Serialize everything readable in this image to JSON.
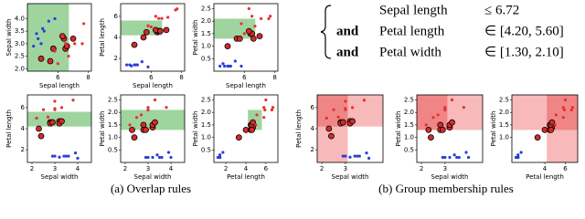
{
  "rule": {
    "lines": [
      {
        "feature": "Sepal length",
        "condition": "≤ 6.72"
      },
      {
        "connector": "and",
        "feature": "Petal length",
        "condition": "∈ [4.20, 5.60]"
      },
      {
        "connector": "and",
        "feature": "Petal width",
        "condition": "∈ [1.30, 2.10]"
      }
    ]
  },
  "captions": [
    "(a) Overlap rules",
    "(b) Group membership rules"
  ],
  "chart_data": [
    {
      "type": "scatter",
      "xlabel": "Sepal length",
      "ylabel": "Sepal width",
      "xlim": [
        4,
        8.2
      ],
      "ylim": [
        1.9,
        4.6
      ],
      "xticks": [
        6,
        8
      ],
      "yticks": [
        {
          "value": 2,
          "label": "2.0"
        },
        {
          "value": 2.5,
          "label": "2.5"
        },
        {
          "value": 3,
          "label": "3.0"
        },
        {
          "value": 3.5,
          "label": "3.5"
        },
        {
          "value": 4,
          "label": "4.0"
        }
      ],
      "regions": [
        {
          "x": [
            4,
            6.72
          ],
          "y": [
            1.9,
            4.6
          ],
          "color": "#9fd49f"
        }
      ],
      "series": [
        {
          "color": "#2a3fd8",
          "x": [
            5.1,
            4.9,
            4.7,
            5.0,
            5.4,
            4.6,
            5.8,
            4.4
          ],
          "values": [
            3.5,
            3.0,
            3.2,
            3.6,
            3.9,
            3.4,
            4.0,
            2.9
          ]
        },
        {
          "color": "#d42a2a",
          "outline": "#000",
          "x": [
            7.0,
            6.4,
            5.5,
            6.5,
            5.7,
            6.3,
            4.9,
            6.6
          ],
          "values": [
            3.2,
            3.2,
            2.3,
            2.8,
            2.8,
            3.3,
            2.4,
            2.9
          ]
        },
        {
          "color": "#e83030",
          "x": [
            6.3,
            5.8,
            7.1,
            6.5,
            7.6,
            7.7,
            6.7,
            6.0
          ],
          "values": [
            3.3,
            2.7,
            3.0,
            3.0,
            3.0,
            3.8,
            2.5,
            2.2
          ]
        }
      ]
    },
    {
      "type": "scatter",
      "xlabel": "Sepal length",
      "ylabel": "Petal length",
      "xlim": [
        4,
        8.2
      ],
      "ylim": [
        0.8,
        7.2
      ],
      "xticks": [
        6,
        8
      ],
      "yticks": [
        2,
        4,
        6
      ],
      "regions": [
        {
          "x": [
            4,
            6.72
          ],
          "y": [
            4.2,
            5.6
          ],
          "color": "#9fd49f"
        }
      ],
      "series": [
        {
          "color": "#2a3fd8",
          "x": [
            5.1,
            4.9,
            4.7,
            5.0,
            5.4,
            4.6,
            5.8,
            4.4
          ],
          "values": [
            1.4,
            1.4,
            1.3,
            1.4,
            1.7,
            1.4,
            1.2,
            1.4
          ]
        },
        {
          "color": "#d42a2a",
          "outline": "#000",
          "x": [
            7.0,
            6.4,
            5.5,
            6.5,
            5.7,
            6.3,
            4.9,
            6.6
          ],
          "values": [
            4.7,
            4.5,
            4.0,
            4.6,
            4.5,
            4.7,
            3.3,
            4.6
          ]
        },
        {
          "color": "#e83030",
          "x": [
            6.3,
            5.8,
            7.1,
            6.5,
            7.6,
            7.7,
            6.7,
            6.0
          ],
          "values": [
            6.0,
            5.1,
            5.9,
            5.8,
            6.6,
            6.7,
            5.8,
            5.0
          ]
        }
      ]
    },
    {
      "type": "scatter",
      "xlabel": "Sepal length",
      "ylabel": "Petal width",
      "xlim": [
        4,
        8.2
      ],
      "ylim": [
        0,
        2.7
      ],
      "xticks": [
        6,
        8
      ],
      "yticks": [
        {
          "value": 0.5,
          "label": "0.5"
        },
        {
          "value": 1,
          "label": "1.0"
        },
        {
          "value": 1.5,
          "label": "1.5"
        },
        {
          "value": 2,
          "label": "2.0"
        },
        {
          "value": 2.5,
          "label": "2.5"
        }
      ],
      "regions": [
        {
          "x": [
            4,
            6.72
          ],
          "y": [
            1.3,
            2.1
          ],
          "color": "#9fd49f"
        }
      ],
      "series": [
        {
          "color": "#2a3fd8",
          "x": [
            5.1,
            4.9,
            4.7,
            5.0,
            5.4,
            4.6,
            5.8,
            4.4
          ],
          "values": [
            0.2,
            0.2,
            0.2,
            0.2,
            0.4,
            0.3,
            0.2,
            0.2
          ]
        },
        {
          "color": "#d42a2a",
          "outline": "#000",
          "x": [
            7.0,
            6.4,
            5.5,
            6.5,
            5.7,
            6.3,
            4.9,
            6.6
          ],
          "values": [
            1.4,
            1.5,
            1.3,
            1.5,
            1.3,
            1.6,
            1.0,
            1.3
          ]
        },
        {
          "color": "#e83030",
          "x": [
            6.3,
            5.8,
            7.1,
            6.5,
            7.6,
            7.7,
            6.7,
            6.0
          ],
          "values": [
            2.5,
            1.9,
            2.1,
            2.2,
            2.1,
            2.2,
            1.8,
            1.5
          ]
        }
      ]
    },
    {
      "type": "scatter",
      "xlabel": "Sepal width",
      "ylabel": "Petal length",
      "xlim": [
        1.8,
        4.6
      ],
      "ylim": [
        0.8,
        7.2
      ],
      "xticks": [
        2,
        3,
        4
      ],
      "yticks": [
        2,
        4,
        6
      ],
      "regions": [
        {
          "x": [
            1.8,
            4.6
          ],
          "y": [
            4.2,
            5.6
          ],
          "color": "#9fd49f"
        }
      ],
      "series": [
        {
          "color": "#2a3fd8",
          "x": [
            3.5,
            3.0,
            3.2,
            3.6,
            3.9,
            3.4,
            4.0,
            2.9
          ],
          "values": [
            1.4,
            1.4,
            1.3,
            1.4,
            1.7,
            1.4,
            1.2,
            1.4
          ]
        },
        {
          "color": "#d42a2a",
          "outline": "#000",
          "x": [
            3.2,
            3.2,
            2.3,
            2.8,
            2.8,
            3.3,
            2.4,
            2.9
          ],
          "values": [
            4.7,
            4.5,
            4.0,
            4.6,
            4.5,
            4.7,
            3.3,
            4.6
          ]
        },
        {
          "color": "#e83030",
          "x": [
            3.3,
            2.7,
            3.0,
            3.0,
            3.0,
            3.8,
            2.5,
            2.2
          ],
          "values": [
            6.0,
            5.1,
            5.9,
            5.8,
            6.6,
            6.7,
            5.8,
            5.0
          ]
        }
      ]
    },
    {
      "type": "scatter",
      "xlabel": "Sepal width",
      "ylabel": "Petal width",
      "xlim": [
        1.8,
        4.6
      ],
      "ylim": [
        0,
        2.7
      ],
      "xticks": [
        2,
        3,
        4
      ],
      "yticks": [
        {
          "value": 0.5,
          "label": "0.5"
        },
        {
          "value": 1,
          "label": "1.0"
        },
        {
          "value": 1.5,
          "label": "1.5"
        },
        {
          "value": 2,
          "label": "2.0"
        },
        {
          "value": 2.5,
          "label": "2.5"
        }
      ],
      "regions": [
        {
          "x": [
            1.8,
            4.6
          ],
          "y": [
            1.3,
            2.1
          ],
          "color": "#9fd49f"
        }
      ],
      "series": [
        {
          "color": "#2a3fd8",
          "x": [
            3.5,
            3.0,
            3.2,
            3.6,
            3.9,
            3.4,
            4.0,
            2.9
          ],
          "values": [
            0.2,
            0.2,
            0.2,
            0.2,
            0.4,
            0.3,
            0.2,
            0.2
          ]
        },
        {
          "color": "#d42a2a",
          "outline": "#000",
          "x": [
            3.2,
            3.2,
            2.3,
            2.8,
            2.8,
            3.3,
            2.4,
            2.9
          ],
          "values": [
            1.4,
            1.5,
            1.3,
            1.5,
            1.3,
            1.6,
            1.0,
            1.3
          ]
        },
        {
          "color": "#e83030",
          "x": [
            3.3,
            2.7,
            3.0,
            3.0,
            3.0,
            3.8,
            2.5,
            2.2
          ],
          "values": [
            2.5,
            1.9,
            2.1,
            2.2,
            2.1,
            2.2,
            1.8,
            1.5
          ]
        }
      ]
    },
    {
      "type": "scatter",
      "xlabel": "Petal length",
      "ylabel": "Petal width",
      "xlim": [
        0.8,
        7.2
      ],
      "ylim": [
        0,
        2.7
      ],
      "xticks": [
        2,
        4,
        6
      ],
      "yticks": [
        {
          "value": 0.5,
          "label": "0.5"
        },
        {
          "value": 1,
          "label": "1.0"
        },
        {
          "value": 1.5,
          "label": "1.5"
        },
        {
          "value": 2,
          "label": "2.0"
        },
        {
          "value": 2.5,
          "label": "2.5"
        }
      ],
      "regions": [
        {
          "x": [
            4.2,
            5.6
          ],
          "y": [
            1.3,
            2.1
          ],
          "color": "#9fd49f"
        }
      ],
      "series": [
        {
          "color": "#2a3fd8",
          "x": [
            1.4,
            1.4,
            1.3,
            1.4,
            1.7,
            1.4,
            1.2,
            1.4
          ],
          "values": [
            0.2,
            0.2,
            0.2,
            0.2,
            0.4,
            0.3,
            0.2,
            0.2
          ]
        },
        {
          "color": "#d42a2a",
          "outline": "#000",
          "x": [
            4.7,
            4.5,
            4.0,
            4.6,
            4.5,
            4.7,
            3.3,
            4.6
          ],
          "values": [
            1.4,
            1.5,
            1.3,
            1.5,
            1.3,
            1.6,
            1.0,
            1.3
          ]
        },
        {
          "color": "#e83030",
          "x": [
            6.0,
            5.1,
            5.9,
            5.8,
            6.6,
            6.7,
            5.8,
            5.0
          ],
          "values": [
            2.5,
            1.9,
            2.1,
            2.2,
            2.1,
            2.2,
            1.8,
            1.5
          ]
        }
      ]
    },
    {
      "type": "scatter",
      "xlabel": "Sepal width",
      "ylabel": "Petal length",
      "xlim": [
        1.8,
        4.6
      ],
      "ylim": [
        0.8,
        7.2
      ],
      "xticks": [
        2,
        3
      ],
      "yticks": [
        2,
        4,
        6
      ],
      "regions": [
        {
          "x": [
            1.8,
            4.6
          ],
          "y": [
            4.2,
            7.2
          ],
          "color": "#f7b9b9"
        },
        {
          "x": [
            1.8,
            3.1
          ],
          "y": [
            0.8,
            7.2
          ],
          "color": "#f7b9b9"
        },
        {
          "x": [
            1.8,
            3.1
          ],
          "y": [
            4.2,
            7.2
          ],
          "color": "#f08585"
        }
      ],
      "series": [
        {
          "color": "#2a3fd8",
          "x": [
            3.5,
            3.0,
            3.2,
            3.6,
            3.9,
            3.4,
            4.0,
            2.9
          ],
          "values": [
            1.4,
            1.4,
            1.3,
            1.4,
            1.7,
            1.4,
            1.2,
            1.4
          ]
        },
        {
          "color": "#d42a2a",
          "outline": "#000",
          "x": [
            3.2,
            3.2,
            2.3,
            2.8,
            2.8,
            3.3,
            2.4,
            2.9
          ],
          "values": [
            4.7,
            4.5,
            4.0,
            4.6,
            4.5,
            4.7,
            3.3,
            4.6
          ]
        },
        {
          "color": "#e83030",
          "x": [
            3.3,
            2.7,
            3.0,
            3.0,
            3.0,
            3.8,
            2.5,
            2.2
          ],
          "values": [
            6.0,
            5.1,
            5.9,
            5.8,
            6.6,
            6.7,
            5.8,
            5.0
          ]
        }
      ]
    },
    {
      "type": "scatter",
      "xlabel": "Sepal width",
      "ylabel": "Petal width",
      "xlim": [
        1.8,
        4.6
      ],
      "ylim": [
        0,
        2.7
      ],
      "xticks": [
        2,
        3
      ],
      "yticks": [
        {
          "value": 0.5,
          "label": "0.5"
        },
        {
          "value": 1,
          "label": "1.0"
        },
        {
          "value": 1.5,
          "label": "1.5"
        },
        {
          "value": 2,
          "label": "2.0"
        },
        {
          "value": 2.5,
          "label": "2.5"
        }
      ],
      "regions": [
        {
          "x": [
            1.8,
            4.6
          ],
          "y": [
            1.3,
            2.7
          ],
          "color": "#f7b9b9"
        },
        {
          "x": [
            1.8,
            3.1
          ],
          "y": [
            1.3,
            2.7
          ],
          "color": "#f08585"
        }
      ],
      "series": [
        {
          "color": "#2a3fd8",
          "x": [
            3.5,
            3.0,
            3.2,
            3.6,
            3.9,
            3.4,
            4.0,
            2.9
          ],
          "values": [
            0.2,
            0.2,
            0.2,
            0.2,
            0.4,
            0.3,
            0.2,
            0.2
          ]
        },
        {
          "color": "#d42a2a",
          "outline": "#000",
          "x": [
            3.2,
            3.2,
            2.3,
            2.8,
            2.8,
            3.3,
            2.4,
            2.9
          ],
          "values": [
            1.4,
            1.5,
            1.3,
            1.5,
            1.3,
            1.6,
            1.0,
            1.3
          ]
        },
        {
          "color": "#e83030",
          "x": [
            3.3,
            2.7,
            3.0,
            3.0,
            3.0,
            3.8,
            2.5,
            2.2
          ],
          "values": [
            2.5,
            1.9,
            2.1,
            2.2,
            2.1,
            2.2,
            1.8,
            1.5
          ]
        }
      ]
    },
    {
      "type": "scatter",
      "xlabel": "Petal length",
      "ylabel": "Petal width",
      "xlim": [
        0.8,
        7.2
      ],
      "ylim": [
        0,
        2.7
      ],
      "xticks": [
        4,
        6
      ],
      "yticks": [
        {
          "value": 1,
          "label": "1.0"
        },
        {
          "value": 1.5,
          "label": "1.5"
        },
        {
          "value": 2,
          "label": "2.0"
        },
        {
          "value": 2.5,
          "label": "2.5"
        }
      ],
      "regions": [
        {
          "x": [
            4.2,
            7.2
          ],
          "y": [
            0,
            2.7
          ],
          "color": "#f7b9b9"
        },
        {
          "x": [
            0.8,
            7.2
          ],
          "y": [
            1.3,
            2.7
          ],
          "color": "#f7b9b9"
        },
        {
          "x": [
            4.2,
            7.2
          ],
          "y": [
            1.3,
            2.7
          ],
          "color": "#f08585"
        }
      ],
      "series": [
        {
          "color": "#2a3fd8",
          "x": [
            1.4,
            1.4,
            1.3,
            1.4,
            1.7,
            1.4,
            1.2,
            1.4
          ],
          "values": [
            0.2,
            0.2,
            0.2,
            0.2,
            0.4,
            0.3,
            0.2,
            0.2
          ]
        },
        {
          "color": "#d42a2a",
          "outline": "#000",
          "x": [
            4.7,
            4.5,
            4.0,
            4.6,
            4.5,
            4.7,
            3.3,
            4.6
          ],
          "values": [
            1.4,
            1.5,
            1.3,
            1.5,
            1.3,
            1.6,
            1.0,
            1.3
          ]
        },
        {
          "color": "#e83030",
          "x": [
            6.0,
            5.1,
            5.9,
            5.8,
            6.6,
            6.7,
            5.8,
            5.0
          ],
          "values": [
            2.5,
            1.9,
            2.1,
            2.2,
            2.1,
            2.2,
            1.8,
            1.5
          ]
        }
      ]
    }
  ]
}
